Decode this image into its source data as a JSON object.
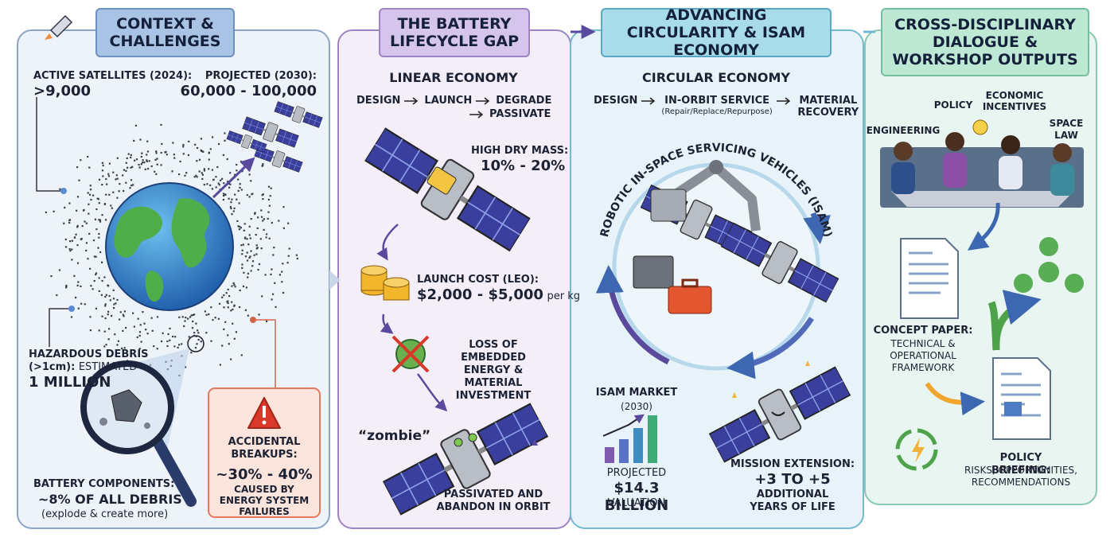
{
  "panels": [
    {
      "title": "CONTEXT & CHALLENGES",
      "active_satellites": {
        "label": "ACTIVE SATELLITES (2024):",
        "value": ">9,000"
      },
      "projected": {
        "label": "PROJECTED (2030):",
        "value": "60,000 - 100,000"
      },
      "debris": {
        "label": "HAZARDOUS DEBRIS (>1cm):",
        "qualifier": "ESTIMATED",
        "value": "1 MILLION"
      },
      "battery": {
        "label": "BATTERY COMPONENTS:",
        "value": "~8% OF ALL DEBRIS",
        "note": "(explode & create more)"
      },
      "breakups": {
        "label": "ACCIDENTAL BREAKUPS:",
        "value": "~30% - 40%",
        "note": "CAUSED BY ENERGY SYSTEM FAILURES"
      }
    },
    {
      "title": "THE BATTERY LIFECYCLE GAP",
      "heading": "LINEAR ECONOMY",
      "flow": [
        "DESIGN",
        "LAUNCH",
        "DEGRADE",
        "PASSIVATE"
      ],
      "dry_mass": {
        "label": "HIGH DRY MASS:",
        "value": "10% - 20%"
      },
      "launch_cost": {
        "label": "LAUNCH COST (LEO):",
        "value": "$2,000 - $5,000",
        "unit": "per kg"
      },
      "loss": "LOSS OF EMBEDDED ENERGY & MATERIAL INVESTMENT",
      "zombie": "“zombie”",
      "end_state": "PASSIVATED AND ABANDON IN ORBIT"
    },
    {
      "title": "ADVANCING CIRCULARITY & ISAM ECONOMY",
      "heading": "CIRCULAR ECONOMY",
      "flow": [
        "DESIGN",
        "IN-ORBIT SERVICE",
        "MATERIAL RECOVERY"
      ],
      "flow_note": "(Repair/Replace/Repurpose)",
      "ring_label": "ROBOTIC IN-SPACE SERVICING VEHICLES (ISAM)",
      "market": {
        "label": "ISAM MARKET",
        "year": "(2030)",
        "prefix": "PROJECTED",
        "value": "$14.3 BILLION",
        "suffix": "VALUATION"
      },
      "extension": {
        "label": "MISSION EXTENSION:",
        "value": "+3 TO +5",
        "note": "ADDITIONAL YEARS OF LIFE"
      }
    },
    {
      "title": "CROSS-DISCIPLINARY DIALOGUE & WORKSHOP OUTPUTS",
      "disciplines": [
        "ENGINEERING",
        "POLICY",
        "ECONOMIC INCENTIVES",
        "SPACE LAW"
      ],
      "concept_paper": {
        "label": "CONCEPT PAPER:",
        "note": "TECHNICAL & OPERATIONAL FRAMEWORK"
      },
      "policy_briefing": {
        "label": "POLICY BRIEFING:",
        "note": "RISKS, OPPORTUNITIES, RECOMMENDATIONS"
      }
    }
  ]
}
